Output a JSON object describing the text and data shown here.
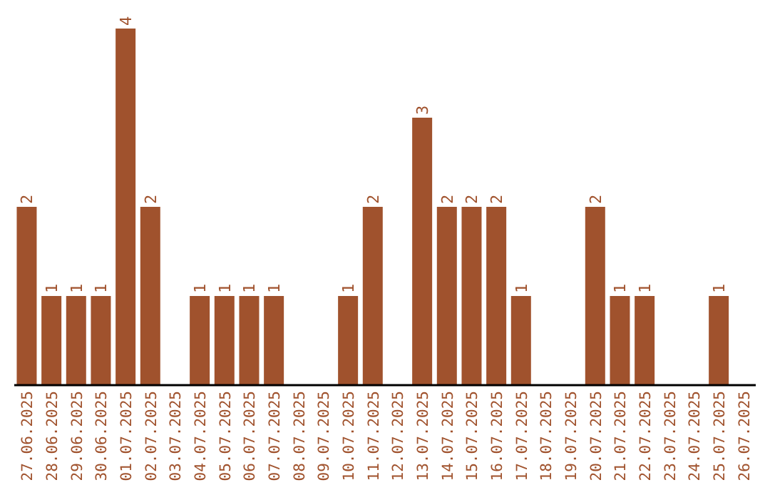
{
  "chart_data": {
    "type": "bar",
    "categories": [
      "27.06.2025",
      "28.06.2025",
      "29.06.2025",
      "30.06.2025",
      "01.07.2025",
      "02.07.2025",
      "03.07.2025",
      "04.07.2025",
      "05.07.2025",
      "06.07.2025",
      "07.07.2025",
      "08.07.2025",
      "09.07.2025",
      "10.07.2025",
      "11.07.2025",
      "12.07.2025",
      "13.07.2025",
      "14.07.2025",
      "15.07.2025",
      "16.07.2025",
      "17.07.2025",
      "18.07.2025",
      "19.07.2025",
      "20.07.2025",
      "21.07.2025",
      "22.07.2025",
      "23.07.2025",
      "24.07.2025",
      "25.07.2025",
      "26.07.2025"
    ],
    "values": [
      2,
      1,
      1,
      1,
      4,
      2,
      0,
      1,
      1,
      1,
      1,
      0,
      0,
      1,
      2,
      0,
      3,
      2,
      2,
      2,
      1,
      0,
      0,
      2,
      1,
      1,
      0,
      0,
      1,
      0
    ],
    "value_labels": [
      "2",
      "1",
      "1",
      "1",
      "4",
      "2",
      null,
      "1",
      "1",
      "1",
      "1",
      null,
      null,
      "1",
      "2",
      null,
      "3",
      "2",
      "2",
      "2",
      "1",
      null,
      null,
      "2",
      "1",
      "1",
      null,
      null,
      "1",
      null
    ],
    "color": "#a0522d",
    "tick_labels": "x",
    "grid": false,
    "legend": false
  }
}
